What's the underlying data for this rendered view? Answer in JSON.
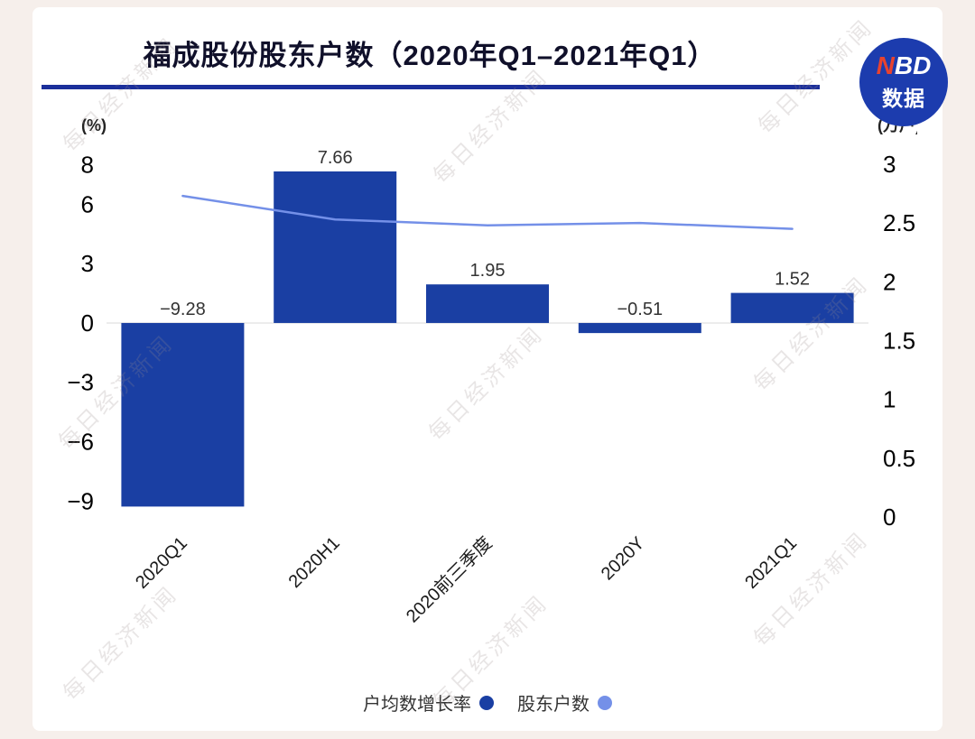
{
  "page": {
    "background": "#f6efeb",
    "card_background": "#ffffff"
  },
  "header": {
    "title": "福成股份股东户数（2020年Q1–2021年Q1）",
    "underline_color": "#1b2f9b",
    "logo": {
      "n": "N",
      "bd": "BD",
      "subtitle": "数据",
      "background": "#1c3cae",
      "n_color": "#e8432f"
    }
  },
  "watermark": {
    "text": "每日经济新闻"
  },
  "chart_data": {
    "type": "bar",
    "title": "福成股份股东户数（2020年Q1–2021年Q1）",
    "categories": [
      "2020Q1",
      "2020H1",
      "2020前三季度",
      "2020Y",
      "2021Q1"
    ],
    "series": [
      {
        "name": "户均数增长率",
        "type": "bar",
        "axis": "left",
        "unit": "%",
        "color": "#1a3fa3",
        "values": [
          -9.28,
          7.66,
          1.95,
          -0.51,
          1.52
        ],
        "labels": [
          "−9.28",
          "7.66",
          "1.95",
          "−0.51",
          "1.52"
        ]
      },
      {
        "name": "股东户数",
        "type": "line",
        "axis": "right",
        "unit": "万户",
        "color": "#7490e8",
        "values": [
          2.73,
          2.53,
          2.48,
          2.5,
          2.45
        ]
      }
    ],
    "left_axis": {
      "label": "(%)",
      "ticks": [
        8,
        6,
        3,
        0,
        -3,
        -6,
        -9
      ],
      "min": -9.9,
      "max": 8.8
    },
    "right_axis": {
      "label": "(万户)",
      "ticks": [
        3,
        2.5,
        2,
        1.5,
        1,
        0.5,
        0
      ],
      "min": -0.015,
      "max": 3.13
    },
    "legend": [
      {
        "label": "户均数增长率",
        "color": "#1a3fa3"
      },
      {
        "label": "股东户数",
        "color": "#7490e8"
      }
    ],
    "grid": "off",
    "legend_position": "bottom"
  }
}
